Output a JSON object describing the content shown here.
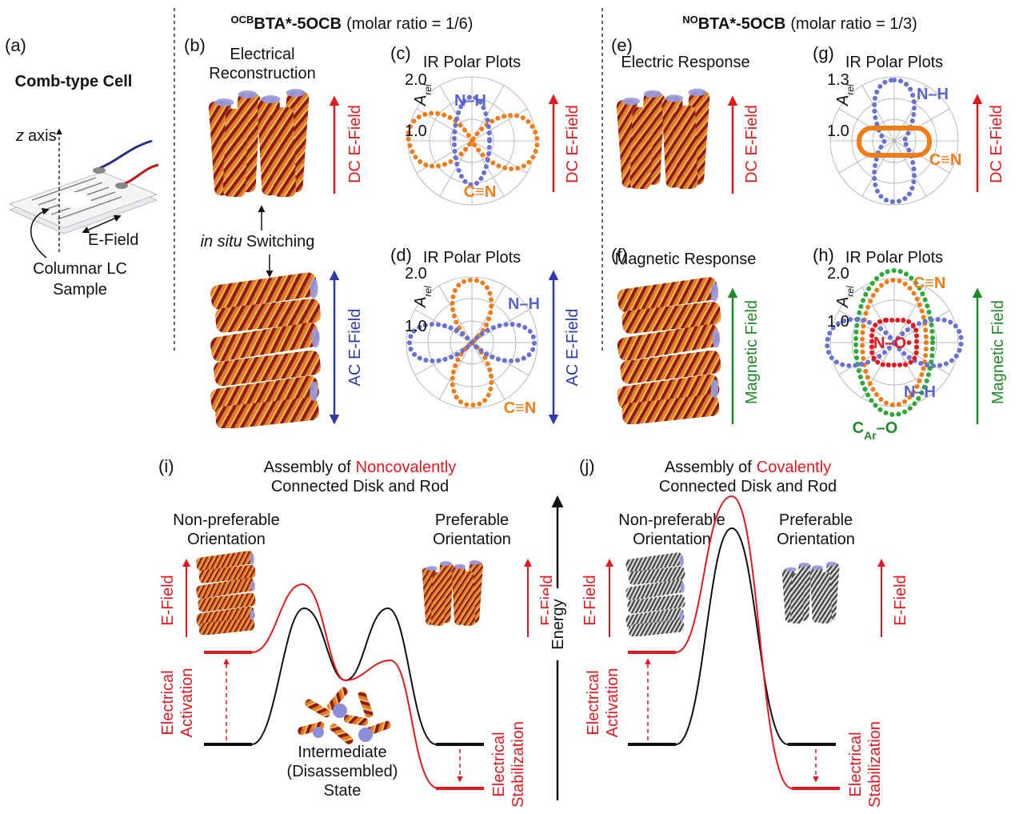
{
  "header": {
    "left": {
      "sup": "OCB",
      "name": "BTA*-5OCB",
      "ratio": "(molar ratio = 1/6)"
    },
    "right": {
      "sup": "NO",
      "name": "BTA*-5OCB",
      "ratio": "(molar ratio = 1/3)"
    }
  },
  "panel_a": {
    "label": "(a)",
    "title": "Comb-type Cell",
    "axis_italic": "z",
    "axis": "axis",
    "field": "E-Field",
    "sample": [
      "Columnar LC",
      "Sample"
    ]
  },
  "panel_b": {
    "label": "(b)",
    "title": [
      "Electrical",
      "Reconstruction"
    ],
    "switch_italic": "in situ",
    "switch": "Switching",
    "dc_field": "DC E-Field",
    "ac_field": "AC E-Field"
  },
  "panel_c": {
    "label": "(c)",
    "title": "IR Polar Plots",
    "ticks": [
      "2.0",
      "1.0"
    ],
    "axis_label": "A",
    "axis_sub": "rel",
    "nh": "N–H",
    "cn": "C≡N",
    "field": "DC E-Field"
  },
  "panel_d": {
    "label": "(d)",
    "title": "IR Polar Plots",
    "ticks": [
      "2.0",
      "1.0"
    ],
    "axis_label": "A",
    "axis_sub": "rel",
    "nh": "N–H",
    "cn": "C≡N",
    "field": "AC E-Field"
  },
  "panel_e": {
    "label": "(e)",
    "title": "Electric Response",
    "field": "DC E-Field"
  },
  "panel_f": {
    "label": "(f)",
    "title": "Magnetic Response",
    "field": "Magnetic Field"
  },
  "panel_g": {
    "label": "(g)",
    "title": "IR Polar Plots",
    "ticks": [
      "1.3",
      "1.0"
    ],
    "axis_label": "A",
    "axis_sub": "rel",
    "nh": "N–H",
    "cn": "C≡N",
    "field": "DC E-Field"
  },
  "panel_h": {
    "label": "(h)",
    "title": "IR Polar Plots",
    "ticks": [
      "2.0",
      "1.0"
    ],
    "axis_label": "A",
    "axis_sub": "rel",
    "cn": "C≡N",
    "no": "N–O•",
    "nh": "N–H",
    "caro": {
      "c": "C",
      "sub": "Ar",
      "rest": "–O"
    },
    "field": "Magnetic Field"
  },
  "panel_i": {
    "label": "(i)",
    "title_pre": "Assembly of",
    "title_em": "Noncovalently",
    "title_2": "Connected Disk and Rod",
    "left": [
      "Non-preferable",
      "Orientation"
    ],
    "right": [
      "Preferable",
      "Orientation"
    ],
    "field_left": "E-Field",
    "field_right": "E-Field",
    "activation": [
      "Electrical",
      "Activation"
    ],
    "stabilization": [
      "Electrical",
      "Stabilization"
    ],
    "intermediate": [
      "Intermediate",
      "(Disassembled)",
      "State"
    ]
  },
  "energy_axis": "Energy",
  "panel_j": {
    "label": "(j)",
    "title_pre": "Assembly of",
    "title_em": "Covalently",
    "title_2": "Connected Disk and Rod",
    "left": [
      "Non-preferable",
      "Orientation"
    ],
    "right": [
      "Preferable",
      "Orientation"
    ],
    "field_left": "E-Field",
    "field_right": "E-Field",
    "activation": [
      "Electrical",
      "Activation"
    ],
    "stabilization": [
      "Electrical",
      "Stabilization"
    ]
  }
}
